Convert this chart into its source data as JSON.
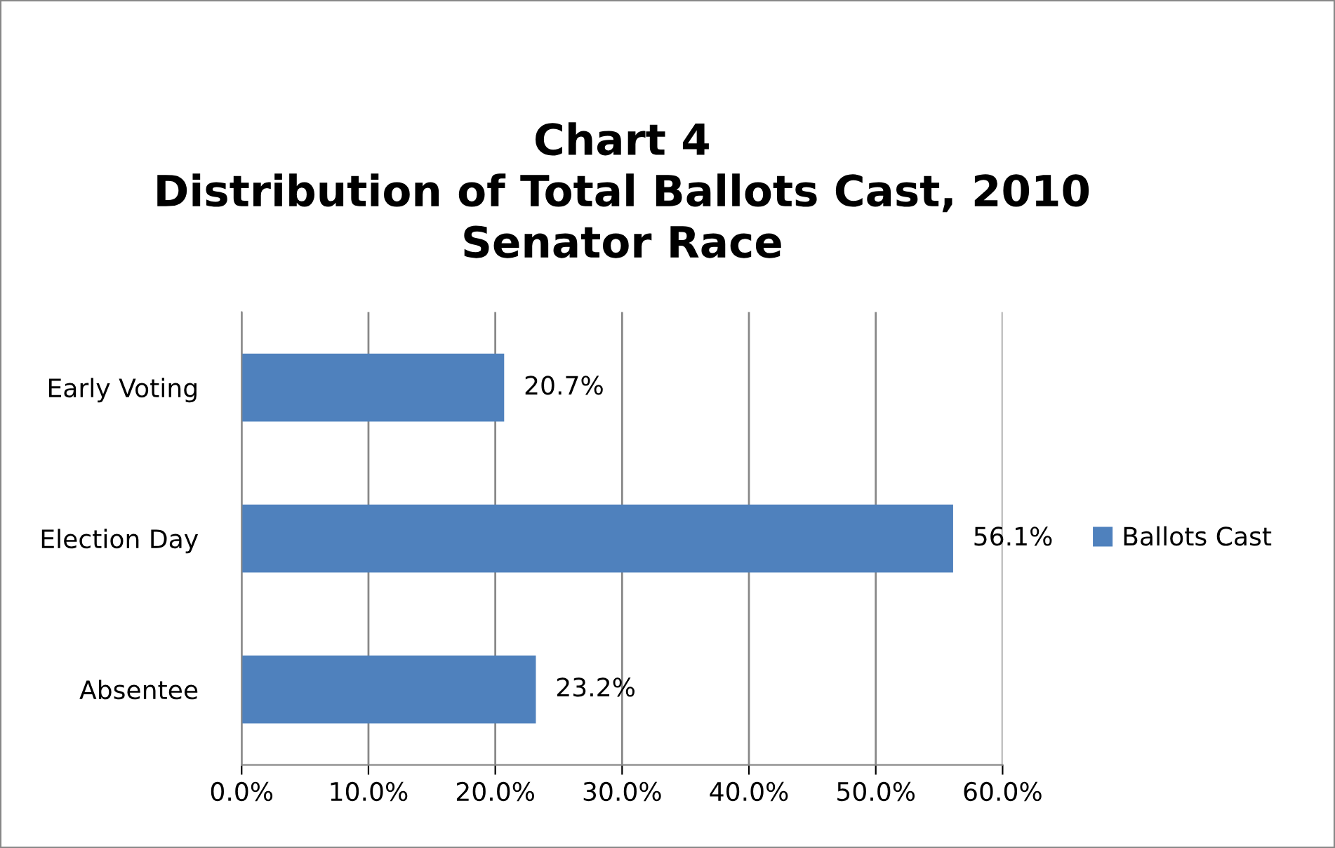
{
  "chart_data": {
    "type": "bar",
    "orientation": "horizontal",
    "title": "Chart 4\nDistribution of Total Ballots Cast, 2010\nSenator Race",
    "categories": [
      "Early Voting",
      "Election Day",
      "Absentee"
    ],
    "series": [
      {
        "name": "Ballots Cast",
        "color": "#4f81bd",
        "values": [
          20.7,
          56.1,
          23.2
        ],
        "value_labels": [
          "20.7%",
          "56.1%",
          "23.2%"
        ]
      }
    ],
    "xlim": [
      0,
      60
    ],
    "xticks": [
      {
        "value": 0,
        "label": "0.0%"
      },
      {
        "value": 10,
        "label": "10.0%"
      },
      {
        "value": 20,
        "label": "20.0%"
      },
      {
        "value": 30,
        "label": "30.0%"
      },
      {
        "value": 40,
        "label": "40.0%"
      },
      {
        "value": 50,
        "label": "50.0%"
      },
      {
        "value": 60,
        "label": "60.0%"
      }
    ],
    "grid": "x",
    "legend": "right"
  }
}
